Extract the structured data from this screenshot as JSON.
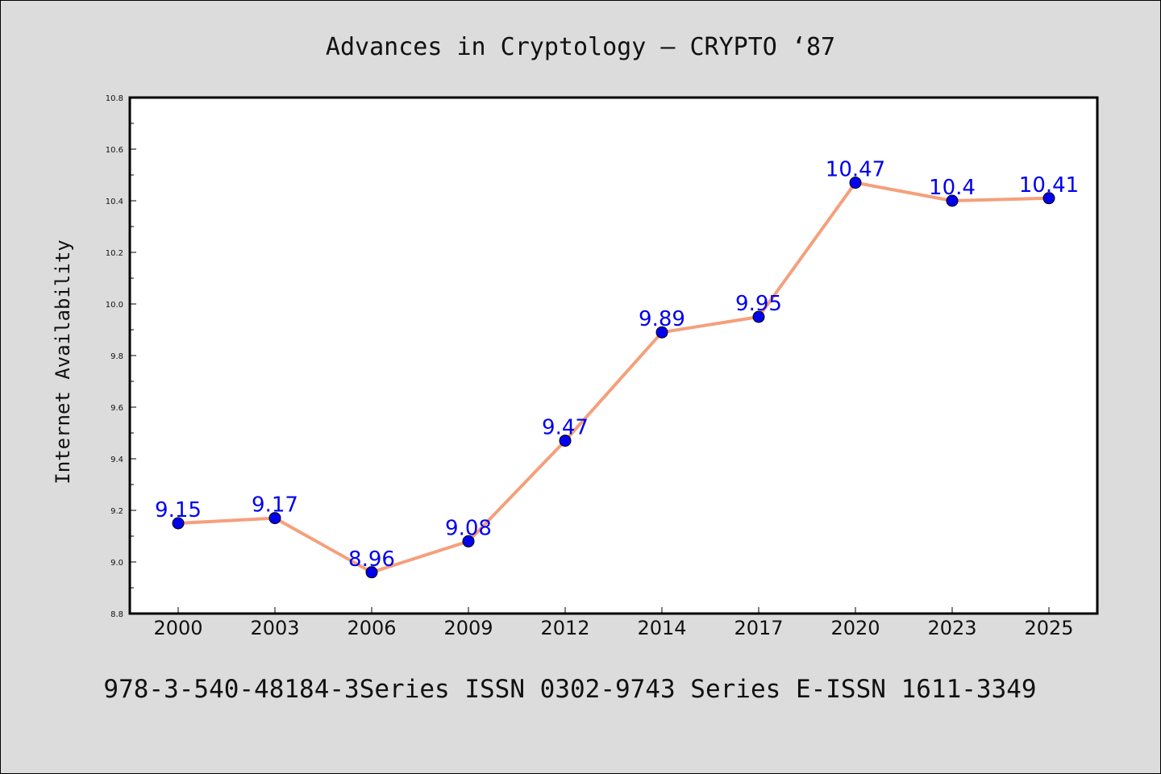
{
  "colors": {
    "background": "#dcdcdc",
    "plot_background": "#ffffff",
    "line": "#f4a07c",
    "marker": "#0000ee",
    "data_label": "#0000ee"
  },
  "footer": "978-3-540-48184-3Series ISSN 0302-9743 Series E-ISSN 1611-3349",
  "chart_data": {
    "type": "line",
    "title": "Advances in Cryptology – CRYPTO  ‘87",
    "xlabel": "",
    "ylabel": "Internet Availability",
    "categories": [
      "2000",
      "2003",
      "2006",
      "2009",
      "2012",
      "2014",
      "2017",
      "2020",
      "2023",
      "2025"
    ],
    "values": [
      9.15,
      9.17,
      8.96,
      9.08,
      9.47,
      9.89,
      9.95,
      10.47,
      10.4,
      10.41
    ],
    "data_labels": [
      "9.15",
      "9.17",
      "8.96",
      "9.08",
      "9.47",
      "9.89",
      "9.95",
      "10.47",
      "10.4",
      "10.41"
    ],
    "ylim": [
      8.8,
      10.8
    ],
    "yticks": [
      "8.8",
      "9.0",
      "9.2",
      "9.4",
      "9.6",
      "9.8",
      "10.0",
      "10.2",
      "10.4",
      "10.6",
      "10.8"
    ],
    "grid": false,
    "legend": "none"
  }
}
